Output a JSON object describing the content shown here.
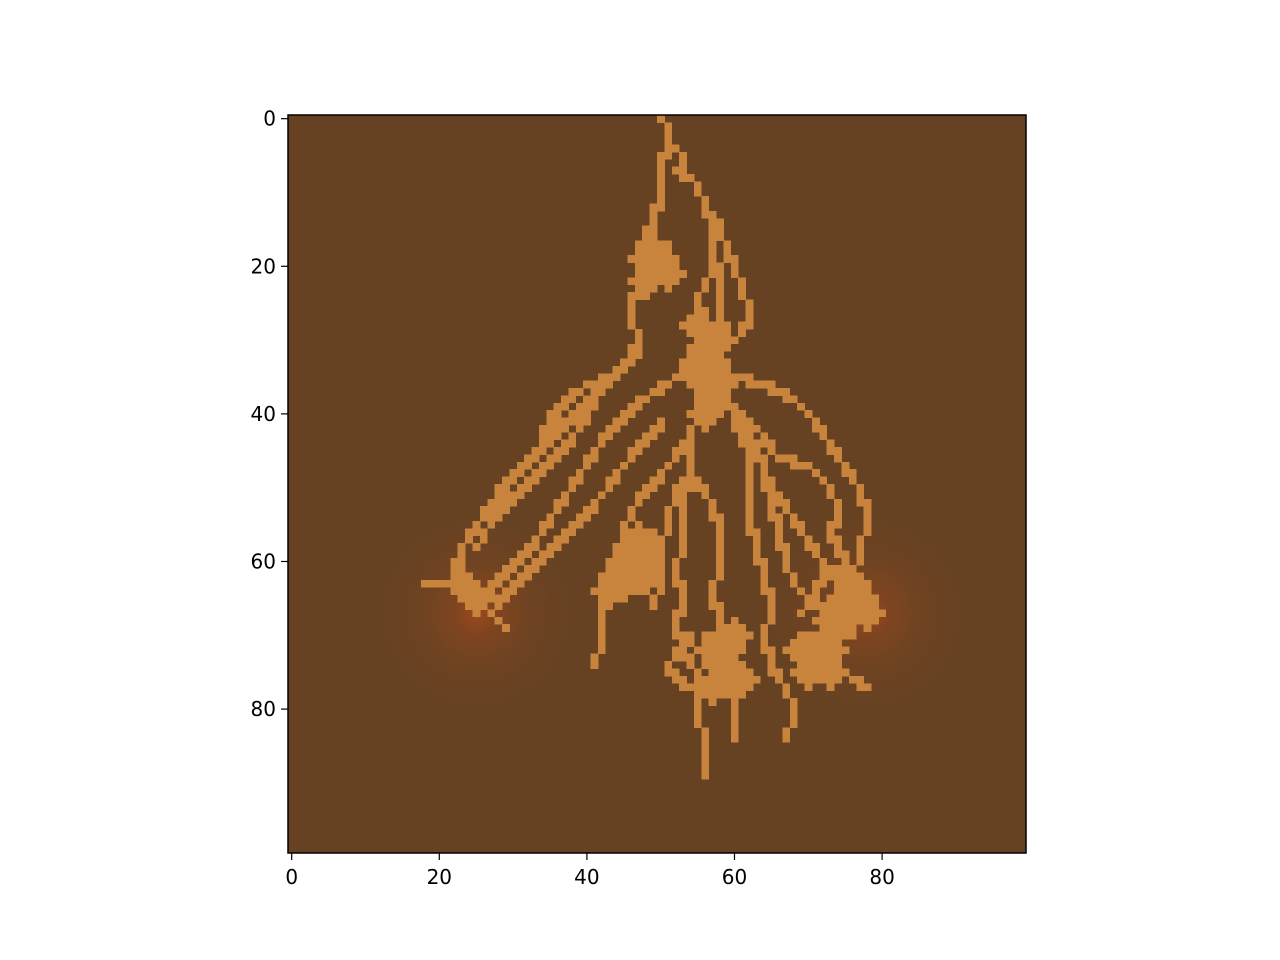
{
  "chart_data": {
    "type": "heatmap",
    "title": "",
    "xlabel": "",
    "ylabel": "",
    "grid_size": [
      100,
      100
    ],
    "xlim": [
      -0.5,
      99.5
    ],
    "ylim": [
      99.5,
      -0.5
    ],
    "x_ticks": [
      0,
      20,
      40,
      60,
      80
    ],
    "y_ticks": [
      0,
      20,
      40,
      60,
      80
    ],
    "grid": false,
    "colors": {
      "background": "#664223",
      "pattern": "#c8843c",
      "glow": "#b34a18",
      "frame": "#000000"
    },
    "glow_spots": [
      {
        "x": 25,
        "y": 67
      },
      {
        "x": 78,
        "y": 67
      }
    ],
    "pattern_strokes": [
      [
        [
          50,
          0
        ],
        [
          51,
          1
        ],
        [
          51,
          3
        ],
        [
          53,
          5
        ],
        [
          52,
          7
        ],
        [
          55,
          9
        ],
        [
          56,
          12
        ],
        [
          58,
          14
        ],
        [
          57,
          17
        ],
        [
          57,
          20
        ],
        [
          55,
          24
        ],
        [
          56,
          28
        ],
        [
          55,
          31
        ],
        [
          56,
          35
        ],
        [
          55,
          39
        ],
        [
          54,
          43
        ],
        [
          54,
          48
        ],
        [
          53,
          52
        ],
        [
          53,
          57
        ],
        [
          52,
          61
        ],
        [
          53,
          65
        ],
        [
          52,
          68
        ],
        [
          53,
          72
        ],
        [
          55,
          75
        ],
        [
          55,
          80
        ],
        [
          56,
          85
        ],
        [
          56,
          89
        ]
      ],
      [
        [
          51,
          3
        ],
        [
          50,
          6
        ],
        [
          50,
          10
        ],
        [
          49,
          13
        ],
        [
          48,
          16
        ],
        [
          49,
          19
        ],
        [
          48,
          22
        ],
        [
          46,
          24
        ],
        [
          46,
          27
        ],
        [
          47,
          30
        ],
        [
          45,
          33
        ],
        [
          43,
          35
        ],
        [
          40,
          36
        ],
        [
          37,
          38
        ],
        [
          35,
          40
        ],
        [
          34,
          42
        ]
      ],
      [
        [
          56,
          12
        ],
        [
          57,
          15
        ],
        [
          59,
          17
        ],
        [
          60,
          20
        ],
        [
          61,
          23
        ],
        [
          62,
          26
        ],
        [
          61,
          29
        ]
      ],
      [
        [
          59,
          17
        ],
        [
          58,
          21
        ],
        [
          58,
          26
        ],
        [
          59,
          29
        ],
        [
          57,
          33
        ]
      ],
      [
        [
          55,
          33
        ],
        [
          52,
          35
        ],
        [
          49,
          37
        ],
        [
          46,
          39
        ],
        [
          43,
          42
        ],
        [
          41,
          45
        ],
        [
          39,
          48
        ],
        [
          37,
          51
        ],
        [
          35,
          54
        ],
        [
          33,
          57
        ],
        [
          31,
          59
        ],
        [
          29,
          61
        ],
        [
          27,
          63
        ],
        [
          26,
          66
        ]
      ],
      [
        [
          47,
          31
        ],
        [
          44,
          34
        ],
        [
          41,
          37
        ],
        [
          38,
          40
        ],
        [
          35,
          43
        ],
        [
          32,
          46
        ],
        [
          29,
          49
        ],
        [
          27,
          52
        ],
        [
          25,
          55
        ],
        [
          23,
          58
        ],
        [
          22,
          61
        ],
        [
          21,
          63
        ],
        [
          18,
          63
        ]
      ],
      [
        [
          41,
          38
        ],
        [
          38,
          43
        ],
        [
          34,
          47
        ],
        [
          30,
          51
        ],
        [
          27,
          54
        ],
        [
          25,
          58
        ]
      ],
      [
        [
          36,
          40
        ],
        [
          33,
          45
        ],
        [
          29,
          50
        ],
        [
          26,
          54
        ]
      ],
      [
        [
          50,
          41
        ],
        [
          47,
          44
        ],
        [
          44,
          48
        ],
        [
          41,
          52
        ],
        [
          38,
          55
        ],
        [
          35,
          58
        ],
        [
          32,
          61
        ],
        [
          29,
          64
        ],
        [
          27,
          67
        ],
        [
          29,
          69
        ]
      ],
      [
        [
          53,
          44
        ],
        [
          50,
          48
        ],
        [
          47,
          51
        ],
        [
          45,
          55
        ],
        [
          44,
          59
        ],
        [
          43,
          62
        ],
        [
          42,
          66
        ],
        [
          42,
          70
        ],
        [
          41,
          74
        ]
      ],
      [
        [
          56,
          35
        ],
        [
          59,
          38
        ],
        [
          61,
          41
        ],
        [
          63,
          44
        ],
        [
          64,
          48
        ],
        [
          65,
          52
        ],
        [
          66,
          56
        ],
        [
          67,
          60
        ],
        [
          68,
          63
        ],
        [
          70,
          65
        ],
        [
          72,
          67
        ]
      ],
      [
        [
          56,
          36
        ],
        [
          60,
          35
        ],
        [
          64,
          36
        ],
        [
          68,
          38
        ],
        [
          71,
          41
        ],
        [
          73,
          44
        ],
        [
          75,
          47
        ],
        [
          77,
          50
        ],
        [
          78,
          54
        ],
        [
          77,
          58
        ],
        [
          76,
          62
        ],
        [
          77,
          66
        ]
      ],
      [
        [
          57,
          38
        ],
        [
          61,
          40
        ],
        [
          64,
          43
        ],
        [
          66,
          46
        ],
        [
          70,
          47
        ],
        [
          73,
          50
        ],
        [
          74,
          53
        ],
        [
          73,
          56
        ],
        [
          75,
          60
        ]
      ],
      [
        [
          60,
          41
        ],
        [
          62,
          45
        ],
        [
          62,
          50
        ],
        [
          62,
          54
        ],
        [
          63,
          58
        ],
        [
          64,
          62
        ],
        [
          65,
          66
        ],
        [
          64,
          70
        ],
        [
          65,
          74
        ],
        [
          67,
          77
        ],
        [
          68,
          80
        ],
        [
          67,
          84
        ]
      ],
      [
        [
          55,
          49
        ],
        [
          57,
          52
        ],
        [
          58,
          56
        ],
        [
          58,
          60
        ],
        [
          57,
          64
        ],
        [
          58,
          68
        ],
        [
          58,
          72
        ],
        [
          59,
          76
        ],
        [
          60,
          80
        ],
        [
          60,
          84
        ]
      ],
      [
        [
          54,
          48
        ],
        [
          52,
          50
        ],
        [
          51,
          54
        ],
        [
          50,
          58
        ],
        [
          50,
          62
        ],
        [
          49,
          66
        ]
      ],
      [
        [
          64,
          48
        ],
        [
          66,
          51
        ],
        [
          68,
          54
        ],
        [
          70,
          57
        ],
        [
          72,
          60
        ],
        [
          74,
          62
        ]
      ],
      [
        [
          54,
          70
        ],
        [
          52,
          72
        ],
        [
          51,
          74
        ],
        [
          52,
          76
        ],
        [
          54,
          77
        ]
      ],
      [
        [
          69,
          70
        ],
        [
          72,
          72
        ],
        [
          74,
          74
        ],
        [
          76,
          76
        ],
        [
          78,
          77
        ]
      ],
      [
        [
          69,
          67
        ],
        [
          71,
          64
        ],
        [
          72,
          61
        ]
      ]
    ],
    "pattern_blobs": [
      [
        49,
        19,
        3
      ],
      [
        48,
        22,
        2
      ],
      [
        51,
        21,
        2
      ],
      [
        55,
        28,
        2
      ],
      [
        56,
        33,
        3
      ],
      [
        57,
        36,
        3
      ],
      [
        56,
        40,
        2
      ],
      [
        58,
        30,
        2
      ],
      [
        47,
        58,
        3
      ],
      [
        45,
        62,
        3
      ],
      [
        48,
        62,
        2
      ],
      [
        43,
        64,
        2
      ],
      [
        25,
        65,
        2
      ],
      [
        23,
        63,
        2
      ],
      [
        58,
        72,
        3
      ],
      [
        60,
        70,
        2
      ],
      [
        61,
        76,
        2
      ],
      [
        57,
        77,
        2
      ],
      [
        76,
        65,
        3
      ],
      [
        74,
        68,
        3
      ],
      [
        72,
        72,
        3
      ],
      [
        70,
        75,
        2
      ],
      [
        75,
        62,
        2
      ],
      [
        78,
        67,
        2
      ],
      [
        69,
        72,
        2
      ],
      [
        73,
        75,
        2
      ]
    ]
  }
}
